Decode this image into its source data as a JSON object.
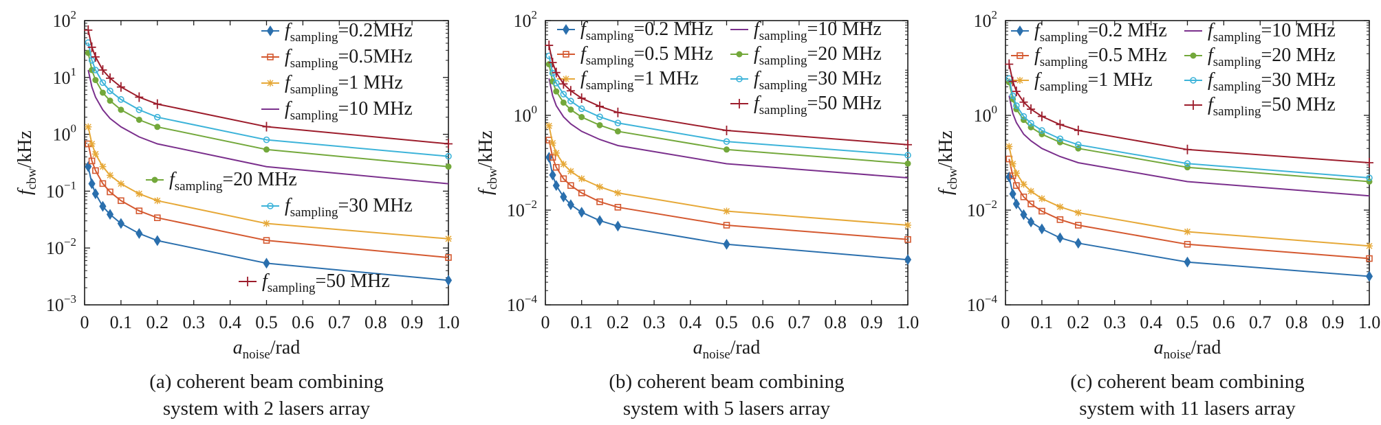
{
  "colors": {
    "0.2": "#2a6fad",
    "0.5": "#d4582f",
    "1": "#e6a837",
    "10": "#7a2f8c",
    "20": "#73a83b",
    "30": "#3cb3d9",
    "50": "#9c1c2b",
    "axis": "#1a1a1a"
  },
  "chart_data": [
    {
      "type": "line",
      "yscale": "log",
      "ylim": [
        0.001,
        100
      ],
      "xlim": [
        0,
        1.0
      ],
      "xlabel_main": "a",
      "xlabel_sub": "noise",
      "xlabel_unit": "/rad",
      "ylabel_main": "f",
      "ylabel_sub": "cbw",
      "ylabel_unit": "/kHz",
      "ytick_exponents": [
        "2",
        "1",
        "0",
        "−1",
        "−2",
        "−3"
      ],
      "xtick_labels": [
        "0",
        "0.1",
        "0.2",
        "0.3",
        "0.4",
        "0.5",
        "0.6",
        "0.7",
        "0.8",
        "0.9",
        "1.0"
      ],
      "caption_line1": "(a) coherent beam combining",
      "caption_line2": "system with 2 lasers array",
      "x": [
        0.01,
        0.02,
        0.03,
        0.05,
        0.07,
        0.1,
        0.15,
        0.2,
        0.5,
        1.0
      ],
      "series": [
        {
          "key": "0.2",
          "label_pre": "f",
          "label_sub": "sampling",
          "label_post": "=0.2MHz",
          "marker": "diamond",
          "values": [
            0.27,
            0.135,
            0.09,
            0.054,
            0.039,
            0.027,
            0.018,
            0.0135,
            0.0054,
            0.0027
          ]
        },
        {
          "key": "0.5",
          "label_pre": "f",
          "label_sub": "sampling",
          "label_post": "=0.5MHz",
          "marker": "square",
          "values": [
            0.68,
            0.34,
            0.23,
            0.136,
            0.097,
            0.068,
            0.045,
            0.034,
            0.0136,
            0.0068
          ]
        },
        {
          "key": "1",
          "label_pre": "f",
          "label_sub": "sampling",
          "label_post": "=1 MHz",
          "marker": "star",
          "values": [
            1.35,
            0.68,
            0.45,
            0.27,
            0.19,
            0.135,
            0.09,
            0.068,
            0.027,
            0.0145
          ]
        },
        {
          "key": "10",
          "label_pre": "f",
          "label_sub": "sampling",
          "label_post": "=10 MHz",
          "marker": "none",
          "values": [
            13.5,
            6.8,
            4.5,
            2.7,
            1.9,
            1.35,
            0.9,
            0.68,
            0.27,
            0.135
          ]
        },
        {
          "key": "20",
          "label_pre": "f",
          "label_sub": "sampling",
          "label_post": "=20 MHz",
          "marker": "circle-filled",
          "values": [
            27,
            13.5,
            9,
            5.4,
            3.9,
            2.7,
            1.8,
            1.35,
            0.54,
            0.27
          ]
        },
        {
          "key": "30",
          "label_pre": "f",
          "label_sub": "sampling",
          "label_post": "=30 MHz",
          "marker": "circle-open",
          "values": [
            41,
            20,
            13.5,
            8.1,
            5.8,
            4.1,
            2.7,
            2.0,
            0.8,
            0.41
          ]
        },
        {
          "key": "50",
          "label_pre": "f",
          "label_sub": "sampling",
          "label_post": "=50 MHz",
          "marker": "plus",
          "values": [
            68,
            34,
            23,
            13.5,
            9.7,
            6.8,
            4.5,
            3.4,
            1.36,
            0.68
          ]
        }
      ]
    },
    {
      "type": "line",
      "yscale": "log",
      "ylim": [
        0.0001,
        100
      ],
      "xlim": [
        0,
        1.0
      ],
      "xlabel_main": "a",
      "xlabel_sub": "noise",
      "xlabel_unit": "/rad",
      "ylabel_main": "f",
      "ylabel_sub": "cbw",
      "ylabel_unit": "/kHz",
      "ytick_exponents": [
        "2",
        "0",
        "−2",
        "−4"
      ],
      "xtick_labels": [
        "0",
        "0.1",
        "0.2",
        "0.3",
        "0.4",
        "0.5",
        "0.6",
        "0.7",
        "0.8",
        "0.9",
        "1.0"
      ],
      "caption_line1": "(b) coherent beam combining",
      "caption_line2": "system with 5 lasers array",
      "x": [
        0.01,
        0.02,
        0.03,
        0.05,
        0.07,
        0.1,
        0.15,
        0.2,
        0.5,
        1.0
      ],
      "series": [
        {
          "key": "0.2",
          "label_pre": "f",
          "label_sub": "sampling",
          "label_post": "=0.2 MHz",
          "marker": "diamond",
          "values": [
            0.13,
            0.055,
            0.033,
            0.019,
            0.013,
            0.009,
            0.006,
            0.0046,
            0.0019,
            0.0009
          ]
        },
        {
          "key": "0.5",
          "label_pre": "f",
          "label_sub": "sampling",
          "label_post": "=0.5 MHz",
          "marker": "square",
          "values": [
            0.3,
            0.13,
            0.08,
            0.046,
            0.033,
            0.023,
            0.015,
            0.0115,
            0.0048,
            0.0024
          ]
        },
        {
          "key": "1",
          "label_pre": "f",
          "label_sub": "sampling",
          "label_post": "=1 MHz",
          "marker": "star",
          "values": [
            0.6,
            0.26,
            0.16,
            0.093,
            0.066,
            0.046,
            0.031,
            0.023,
            0.0095,
            0.0048
          ]
        },
        {
          "key": "10",
          "label_pre": "f",
          "label_sub": "sampling",
          "label_post": "=10 MHz",
          "marker": "none",
          "values": [
            6,
            2.6,
            1.6,
            0.93,
            0.66,
            0.46,
            0.31,
            0.23,
            0.095,
            0.048
          ]
        },
        {
          "key": "20",
          "label_pre": "f",
          "label_sub": "sampling",
          "label_post": "=20 MHz",
          "marker": "circle-filled",
          "values": [
            12,
            5.2,
            3.2,
            1.86,
            1.32,
            0.92,
            0.62,
            0.46,
            0.19,
            0.096
          ]
        },
        {
          "key": "30",
          "label_pre": "f",
          "label_sub": "sampling",
          "label_post": "=30 MHz",
          "marker": "circle-open",
          "values": [
            18,
            7.8,
            4.8,
            2.8,
            2.0,
            1.38,
            0.93,
            0.69,
            0.28,
            0.144
          ]
        },
        {
          "key": "50",
          "label_pre": "f",
          "label_sub": "sampling",
          "label_post": "=50 MHz",
          "marker": "plus",
          "values": [
            30,
            13,
            8,
            4.6,
            3.3,
            2.3,
            1.55,
            1.15,
            0.48,
            0.24
          ]
        }
      ]
    },
    {
      "type": "line",
      "yscale": "log",
      "ylim": [
        0.0001,
        100
      ],
      "xlim": [
        0,
        1.0
      ],
      "xlabel_main": "a",
      "xlabel_sub": "noise",
      "xlabel_unit": "/rad",
      "ylabel_main": "f",
      "ylabel_sub": "cbw",
      "ylabel_unit": "/kHz",
      "ytick_exponents": [
        "2",
        "0",
        "−2",
        "−4"
      ],
      "xtick_labels": [
        "0",
        "0.1",
        "0.2",
        "0.3",
        "0.4",
        "0.5",
        "0.6",
        "0.7",
        "0.8",
        "0.9",
        "1.0"
      ],
      "caption_line1": "(c) coherent beam combining",
      "caption_line2": "system with 11 lasers array",
      "x": [
        0.01,
        0.02,
        0.03,
        0.05,
        0.07,
        0.1,
        0.15,
        0.2,
        0.5,
        1.0
      ],
      "series": [
        {
          "key": "0.2",
          "label_pre": "f",
          "label_sub": "sampling",
          "label_post": "=0.2 MHz",
          "marker": "diamond",
          "values": [
            0.05,
            0.022,
            0.0135,
            0.008,
            0.0056,
            0.004,
            0.0026,
            0.002,
            0.0008,
            0.0004
          ]
        },
        {
          "key": "0.5",
          "label_pre": "f",
          "label_sub": "sampling",
          "label_post": "=0.5 MHz",
          "marker": "square",
          "values": [
            0.12,
            0.053,
            0.033,
            0.019,
            0.0135,
            0.0095,
            0.0063,
            0.0048,
            0.0019,
            0.00095
          ]
        },
        {
          "key": "1",
          "label_pre": "f",
          "label_sub": "sampling",
          "label_post": "=1 MHz",
          "marker": "star",
          "values": [
            0.22,
            0.095,
            0.06,
            0.035,
            0.025,
            0.0175,
            0.0117,
            0.0088,
            0.0035,
            0.00175
          ]
        },
        {
          "key": "10",
          "label_pre": "f",
          "label_sub": "sampling",
          "label_post": "=10 MHz",
          "marker": "none",
          "values": [
            2.6,
            1.1,
            0.7,
            0.4,
            0.29,
            0.2,
            0.135,
            0.1,
            0.04,
            0.02
          ]
        },
        {
          "key": "20",
          "label_pre": "f",
          "label_sub": "sampling",
          "label_post": "=20 MHz",
          "marker": "circle-filled",
          "values": [
            5,
            2.2,
            1.35,
            0.8,
            0.56,
            0.4,
            0.27,
            0.2,
            0.08,
            0.04
          ]
        },
        {
          "key": "30",
          "label_pre": "f",
          "label_sub": "sampling",
          "label_post": "=30 MHz",
          "marker": "circle-open",
          "values": [
            6,
            2.6,
            1.6,
            0.95,
            0.68,
            0.48,
            0.32,
            0.24,
            0.096,
            0.048
          ]
        },
        {
          "key": "50",
          "label_pre": "f",
          "label_sub": "sampling",
          "label_post": "=50 MHz",
          "marker": "plus",
          "values": [
            12,
            5.2,
            3.2,
            1.9,
            1.35,
            0.95,
            0.64,
            0.48,
            0.19,
            0.1
          ]
        }
      ]
    }
  ]
}
